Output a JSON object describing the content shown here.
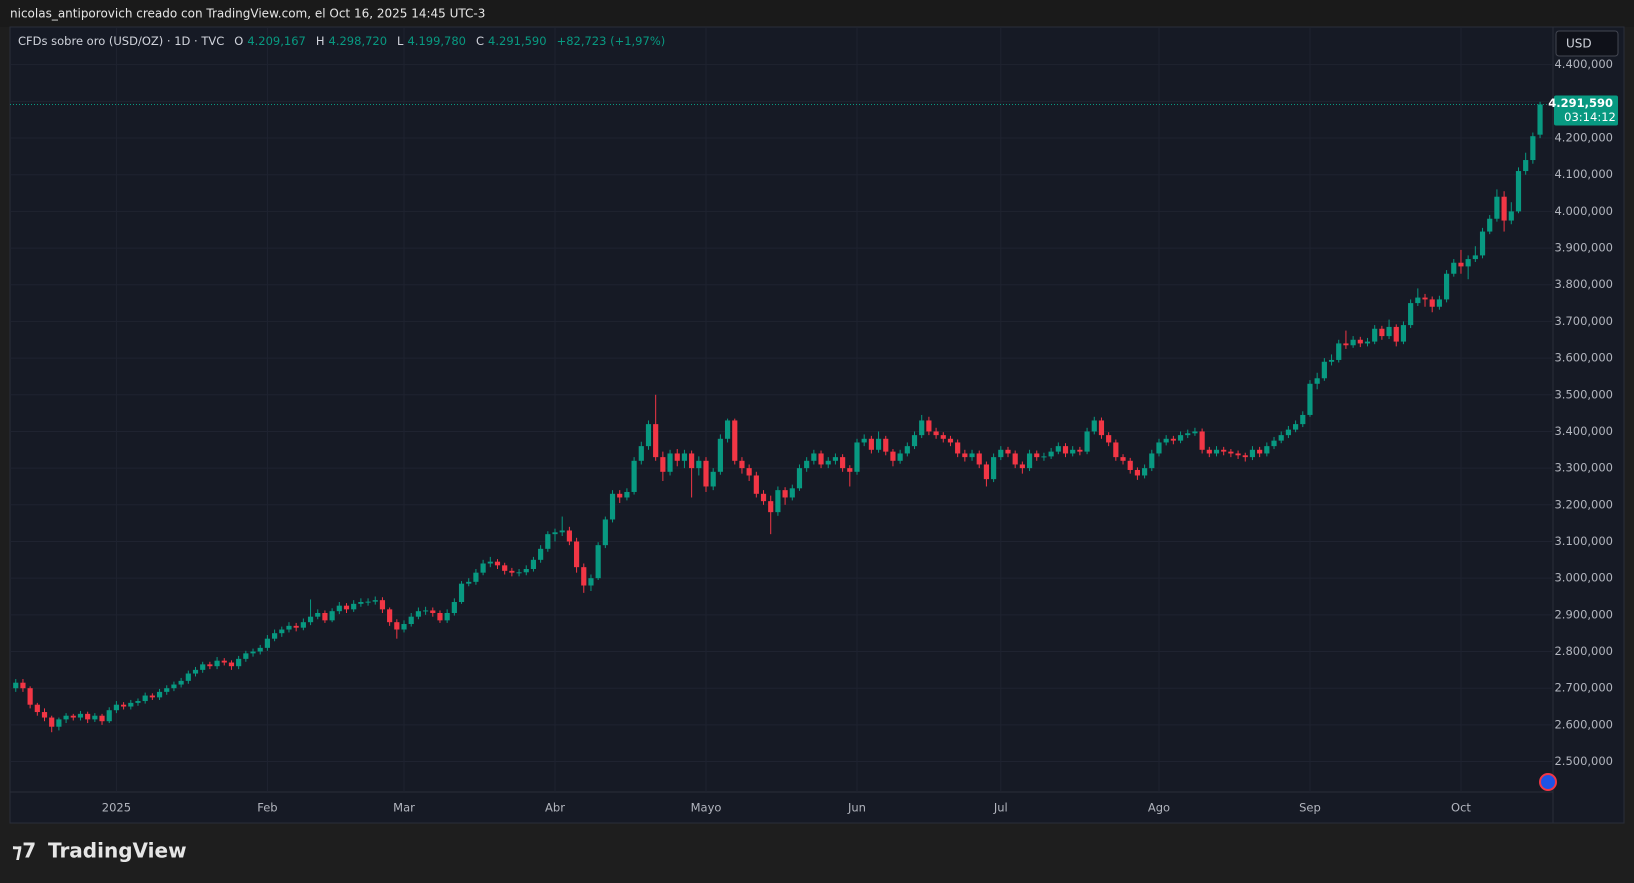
{
  "header": {
    "caption": "nicolas_antiporovich creado con TradingView.com, el Oct 16, 2025 14:45 UTC-3"
  },
  "legend": {
    "symbol": "CFDs sobre oro (USD/OZ) · 1D · TVC",
    "items": [
      {
        "key": "O",
        "text": "4.209,167"
      },
      {
        "key": "H",
        "text": "4.298,720"
      },
      {
        "key": "L",
        "text": "4.199,780"
      },
      {
        "key": "C",
        "text": "4.291,590"
      }
    ],
    "change": "+82,723 (+1,97%)"
  },
  "currency": "USD",
  "price_tag": {
    "price": "4.291,590",
    "countdown": "03:14:12"
  },
  "footer": {
    "logo": "TradingView"
  },
  "chart_data": {
    "type": "candlestick",
    "up_color": "#089981",
    "down_color": "#f23645",
    "grid": true,
    "xlim": [
      -0.8,
      213.8
    ],
    "ylim": [
      2417,
      4500
    ],
    "xticks": [
      {
        "value": 14,
        "label": "2025"
      },
      {
        "value": 35,
        "label": "Feb"
      },
      {
        "value": 54,
        "label": "Mar"
      },
      {
        "value": 75,
        "label": "Abr"
      },
      {
        "value": 96,
        "label": "Mayo"
      },
      {
        "value": 117,
        "label": "Jun"
      },
      {
        "value": 137,
        "label": "Jul"
      },
      {
        "value": 159,
        "label": "Ago"
      },
      {
        "value": 180,
        "label": "Sep"
      },
      {
        "value": 201,
        "label": "Oct"
      }
    ],
    "yticks": [
      {
        "value": 2500,
        "label": "2.500,000"
      },
      {
        "value": 2600,
        "label": "2.600,000"
      },
      {
        "value": 2700,
        "label": "2.700,000"
      },
      {
        "value": 2800,
        "label": "2.800,000"
      },
      {
        "value": 2900,
        "label": "2.900,000"
      },
      {
        "value": 3000,
        "label": "3.000,000"
      },
      {
        "value": 3100,
        "label": "3.100,000"
      },
      {
        "value": 3200,
        "label": "3.200,000"
      },
      {
        "value": 3300,
        "label": "3.300,000"
      },
      {
        "value": 3400,
        "label": "3.400,000"
      },
      {
        "value": 3500,
        "label": "3.500,000"
      },
      {
        "value": 3600,
        "label": "3.600,000"
      },
      {
        "value": 3700,
        "label": "3.700,000"
      },
      {
        "value": 3800,
        "label": "3.800,000"
      },
      {
        "value": 3900,
        "label": "3.900,000"
      },
      {
        "value": 4000,
        "label": "4.000,000"
      },
      {
        "value": 4100,
        "label": "4.100,000"
      },
      {
        "value": 4200,
        "label": "4.200,000"
      },
      {
        "value": 4300,
        "label": "4.300,000"
      },
      {
        "value": 4400,
        "label": "4.400,000"
      }
    ],
    "candles": [
      [
        2700,
        2725,
        2690,
        2715
      ],
      [
        2715,
        2725,
        2690,
        2700
      ],
      [
        2700,
        2705,
        2645,
        2655
      ],
      [
        2655,
        2660,
        2625,
        2635
      ],
      [
        2635,
        2645,
        2610,
        2620
      ],
      [
        2620,
        2625,
        2580,
        2595
      ],
      [
        2595,
        2620,
        2585,
        2615
      ],
      [
        2615,
        2632,
        2605,
        2625
      ],
      [
        2625,
        2630,
        2612,
        2620
      ],
      [
        2620,
        2638,
        2612,
        2630
      ],
      [
        2630,
        2636,
        2605,
        2615
      ],
      [
        2615,
        2632,
        2608,
        2625
      ],
      [
        2625,
        2630,
        2600,
        2610
      ],
      [
        2610,
        2648,
        2605,
        2640
      ],
      [
        2640,
        2665,
        2632,
        2655
      ],
      [
        2655,
        2662,
        2642,
        2650
      ],
      [
        2650,
        2668,
        2642,
        2660
      ],
      [
        2660,
        2672,
        2652,
        2665
      ],
      [
        2665,
        2688,
        2658,
        2680
      ],
      [
        2680,
        2686,
        2668,
        2675
      ],
      [
        2675,
        2698,
        2668,
        2690
      ],
      [
        2690,
        2708,
        2682,
        2700
      ],
      [
        2700,
        2718,
        2692,
        2710
      ],
      [
        2710,
        2728,
        2702,
        2720
      ],
      [
        2720,
        2748,
        2712,
        2740
      ],
      [
        2740,
        2758,
        2732,
        2750
      ],
      [
        2750,
        2772,
        2742,
        2765
      ],
      [
        2765,
        2772,
        2752,
        2760
      ],
      [
        2760,
        2785,
        2752,
        2775
      ],
      [
        2775,
        2782,
        2762,
        2770
      ],
      [
        2770,
        2776,
        2750,
        2760
      ],
      [
        2760,
        2788,
        2752,
        2780
      ],
      [
        2780,
        2802,
        2772,
        2795
      ],
      [
        2795,
        2808,
        2786,
        2800
      ],
      [
        2800,
        2818,
        2792,
        2810
      ],
      [
        2810,
        2845,
        2802,
        2835
      ],
      [
        2835,
        2860,
        2828,
        2850
      ],
      [
        2850,
        2868,
        2840,
        2860
      ],
      [
        2860,
        2880,
        2852,
        2870
      ],
      [
        2870,
        2878,
        2855,
        2865
      ],
      [
        2865,
        2890,
        2858,
        2880
      ],
      [
        2880,
        2942,
        2872,
        2895
      ],
      [
        2895,
        2915,
        2888,
        2905
      ],
      [
        2905,
        2912,
        2878,
        2885
      ],
      [
        2885,
        2918,
        2880,
        2910
      ],
      [
        2910,
        2935,
        2902,
        2925
      ],
      [
        2925,
        2932,
        2905,
        2915
      ],
      [
        2915,
        2940,
        2908,
        2930
      ],
      [
        2930,
        2945,
        2922,
        2935
      ],
      [
        2935,
        2945,
        2925,
        2936
      ],
      [
        2936,
        2950,
        2928,
        2940
      ],
      [
        2940,
        2948,
        2905,
        2915
      ],
      [
        2915,
        2920,
        2870,
        2880
      ],
      [
        2880,
        2888,
        2835,
        2860
      ],
      [
        2860,
        2885,
        2852,
        2875
      ],
      [
        2875,
        2905,
        2868,
        2895
      ],
      [
        2895,
        2920,
        2888,
        2910
      ],
      [
        2910,
        2922,
        2900,
        2912
      ],
      [
        2912,
        2920,
        2895,
        2905
      ],
      [
        2905,
        2912,
        2878,
        2885
      ],
      [
        2885,
        2915,
        2878,
        2905
      ],
      [
        2905,
        2945,
        2898,
        2935
      ],
      [
        2935,
        2992,
        2930,
        2985
      ],
      [
        2985,
        3000,
        2978,
        2990
      ],
      [
        2990,
        3025,
        2982,
        3015
      ],
      [
        3015,
        3050,
        3008,
        3040
      ],
      [
        3040,
        3058,
        3030,
        3045
      ],
      [
        3045,
        3052,
        3025,
        3035
      ],
      [
        3035,
        3042,
        3010,
        3020
      ],
      [
        3020,
        3028,
        3005,
        3015
      ],
      [
        3015,
        3025,
        3005,
        3016
      ],
      [
        3016,
        3035,
        3008,
        3025
      ],
      [
        3025,
        3058,
        3018,
        3050
      ],
      [
        3050,
        3090,
        3042,
        3080
      ],
      [
        3080,
        3128,
        3072,
        3120
      ],
      [
        3120,
        3135,
        3100,
        3125
      ],
      [
        3125,
        3168,
        3115,
        3130
      ],
      [
        3130,
        3140,
        3090,
        3100
      ],
      [
        3100,
        3110,
        3015,
        3030
      ],
      [
        3030,
        3040,
        2960,
        2980
      ],
      [
        2980,
        3010,
        2965,
        3000
      ],
      [
        3000,
        3098,
        2995,
        3090
      ],
      [
        3090,
        3168,
        3082,
        3160
      ],
      [
        3160,
        3240,
        3152,
        3230
      ],
      [
        3230,
        3240,
        3205,
        3220
      ],
      [
        3220,
        3245,
        3212,
        3235
      ],
      [
        3235,
        3330,
        3228,
        3320
      ],
      [
        3320,
        3372,
        3310,
        3360
      ],
      [
        3360,
        3430,
        3350,
        3420
      ],
      [
        3420,
        3500,
        3320,
        3330
      ],
      [
        3330,
        3345,
        3265,
        3290
      ],
      [
        3290,
        3350,
        3280,
        3340
      ],
      [
        3340,
        3352,
        3305,
        3320
      ],
      [
        3320,
        3350,
        3300,
        3340
      ],
      [
        3340,
        3348,
        3220,
        3300
      ],
      [
        3300,
        3332,
        3280,
        3320
      ],
      [
        3320,
        3330,
        3235,
        3250
      ],
      [
        3250,
        3300,
        3240,
        3290
      ],
      [
        3290,
        3392,
        3282,
        3380
      ],
      [
        3380,
        3435,
        3370,
        3430
      ],
      [
        3430,
        3435,
        3310,
        3320
      ],
      [
        3320,
        3330,
        3285,
        3300
      ],
      [
        3300,
        3310,
        3265,
        3280
      ],
      [
        3280,
        3290,
        3220,
        3230
      ],
      [
        3230,
        3240,
        3200,
        3210
      ],
      [
        3210,
        3225,
        3120,
        3180
      ],
      [
        3180,
        3250,
        3170,
        3240
      ],
      [
        3240,
        3248,
        3200,
        3220
      ],
      [
        3220,
        3255,
        3212,
        3245
      ],
      [
        3245,
        3310,
        3238,
        3300
      ],
      [
        3300,
        3330,
        3290,
        3320
      ],
      [
        3320,
        3350,
        3310,
        3340
      ],
      [
        3340,
        3348,
        3300,
        3310
      ],
      [
        3310,
        3330,
        3300,
        3320
      ],
      [
        3320,
        3340,
        3310,
        3330
      ],
      [
        3330,
        3338,
        3290,
        3300
      ],
      [
        3300,
        3308,
        3250,
        3290
      ],
      [
        3290,
        3380,
        3282,
        3370
      ],
      [
        3370,
        3392,
        3360,
        3380
      ],
      [
        3380,
        3388,
        3340,
        3350
      ],
      [
        3350,
        3400,
        3342,
        3380
      ],
      [
        3380,
        3388,
        3335,
        3345
      ],
      [
        3345,
        3352,
        3305,
        3320
      ],
      [
        3320,
        3350,
        3312,
        3340
      ],
      [
        3340,
        3370,
        3332,
        3360
      ],
      [
        3360,
        3400,
        3352,
        3390
      ],
      [
        3390,
        3445,
        3382,
        3430
      ],
      [
        3430,
        3440,
        3390,
        3400
      ],
      [
        3400,
        3410,
        3380,
        3390
      ],
      [
        3390,
        3398,
        3370,
        3380
      ],
      [
        3380,
        3388,
        3360,
        3370
      ],
      [
        3370,
        3378,
        3330,
        3340
      ],
      [
        3340,
        3350,
        3318,
        3330
      ],
      [
        3330,
        3350,
        3320,
        3340
      ],
      [
        3340,
        3348,
        3300,
        3310
      ],
      [
        3310,
        3318,
        3250,
        3270
      ],
      [
        3270,
        3340,
        3262,
        3330
      ],
      [
        3330,
        3360,
        3322,
        3350
      ],
      [
        3350,
        3358,
        3330,
        3340
      ],
      [
        3340,
        3348,
        3300,
        3310
      ],
      [
        3310,
        3318,
        3285,
        3300
      ],
      [
        3300,
        3350,
        3292,
        3340
      ],
      [
        3340,
        3348,
        3320,
        3330
      ],
      [
        3330,
        3342,
        3320,
        3332
      ],
      [
        3332,
        3355,
        3325,
        3345
      ],
      [
        3345,
        3370,
        3338,
        3360
      ],
      [
        3360,
        3368,
        3330,
        3340
      ],
      [
        3340,
        3360,
        3332,
        3350
      ],
      [
        3350,
        3358,
        3335,
        3345
      ],
      [
        3345,
        3410,
        3338,
        3400
      ],
      [
        3400,
        3440,
        3392,
        3430
      ],
      [
        3430,
        3438,
        3380,
        3390
      ],
      [
        3390,
        3398,
        3360,
        3370
      ],
      [
        3370,
        3378,
        3320,
        3330
      ],
      [
        3330,
        3338,
        3310,
        3320
      ],
      [
        3320,
        3328,
        3285,
        3295
      ],
      [
        3295,
        3302,
        3268,
        3280
      ],
      [
        3280,
        3310,
        3272,
        3300
      ],
      [
        3300,
        3350,
        3292,
        3340
      ],
      [
        3340,
        3380,
        3332,
        3370
      ],
      [
        3370,
        3390,
        3362,
        3380
      ],
      [
        3380,
        3388,
        3365,
        3375
      ],
      [
        3375,
        3400,
        3368,
        3390
      ],
      [
        3390,
        3405,
        3382,
        3395
      ],
      [
        3395,
        3410,
        3388,
        3400
      ],
      [
        3400,
        3408,
        3340,
        3350
      ],
      [
        3350,
        3358,
        3330,
        3340
      ],
      [
        3340,
        3360,
        3332,
        3350
      ],
      [
        3350,
        3358,
        3335,
        3345
      ],
      [
        3345,
        3352,
        3330,
        3340
      ],
      [
        3340,
        3348,
        3325,
        3335
      ],
      [
        3335,
        3342,
        3318,
        3330
      ],
      [
        3330,
        3360,
        3322,
        3350
      ],
      [
        3350,
        3358,
        3330,
        3340
      ],
      [
        3340,
        3370,
        3332,
        3360
      ],
      [
        3360,
        3385,
        3352,
        3375
      ],
      [
        3375,
        3400,
        3368,
        3390
      ],
      [
        3390,
        3415,
        3382,
        3405
      ],
      [
        3405,
        3430,
        3398,
        3420
      ],
      [
        3420,
        3455,
        3412,
        3445
      ],
      [
        3445,
        3540,
        3440,
        3530
      ],
      [
        3530,
        3560,
        3515,
        3545
      ],
      [
        3545,
        3600,
        3538,
        3590
      ],
      [
        3590,
        3610,
        3580,
        3595
      ],
      [
        3595,
        3650,
        3588,
        3640
      ],
      [
        3640,
        3675,
        3625,
        3635
      ],
      [
        3635,
        3660,
        3628,
        3650
      ],
      [
        3650,
        3658,
        3630,
        3640
      ],
      [
        3640,
        3655,
        3632,
        3645
      ],
      [
        3645,
        3690,
        3638,
        3680
      ],
      [
        3680,
        3688,
        3650,
        3660
      ],
      [
        3660,
        3705,
        3652,
        3685
      ],
      [
        3685,
        3692,
        3632,
        3645
      ],
      [
        3645,
        3700,
        3638,
        3690
      ],
      [
        3690,
        3760,
        3682,
        3750
      ],
      [
        3750,
        3790,
        3742,
        3765
      ],
      [
        3765,
        3775,
        3740,
        3760
      ],
      [
        3760,
        3768,
        3725,
        3740
      ],
      [
        3740,
        3770,
        3732,
        3760
      ],
      [
        3760,
        3840,
        3752,
        3830
      ],
      [
        3830,
        3870,
        3822,
        3860
      ],
      [
        3860,
        3895,
        3830,
        3850
      ],
      [
        3850,
        3880,
        3815,
        3870
      ],
      [
        3870,
        3905,
        3862,
        3880
      ],
      [
        3880,
        3955,
        3872,
        3945
      ],
      [
        3945,
        3990,
        3938,
        3980
      ],
      [
        3980,
        4060,
        3972,
        4040
      ],
      [
        4040,
        4055,
        3945,
        3975
      ],
      [
        3975,
        4025,
        3965,
        4000
      ],
      [
        4000,
        4120,
        3995,
        4110
      ],
      [
        4110,
        4160,
        4100,
        4140
      ],
      [
        4140,
        4215,
        4130,
        4205
      ],
      [
        4209.167,
        4298.72,
        4199.78,
        4291.59
      ]
    ]
  }
}
